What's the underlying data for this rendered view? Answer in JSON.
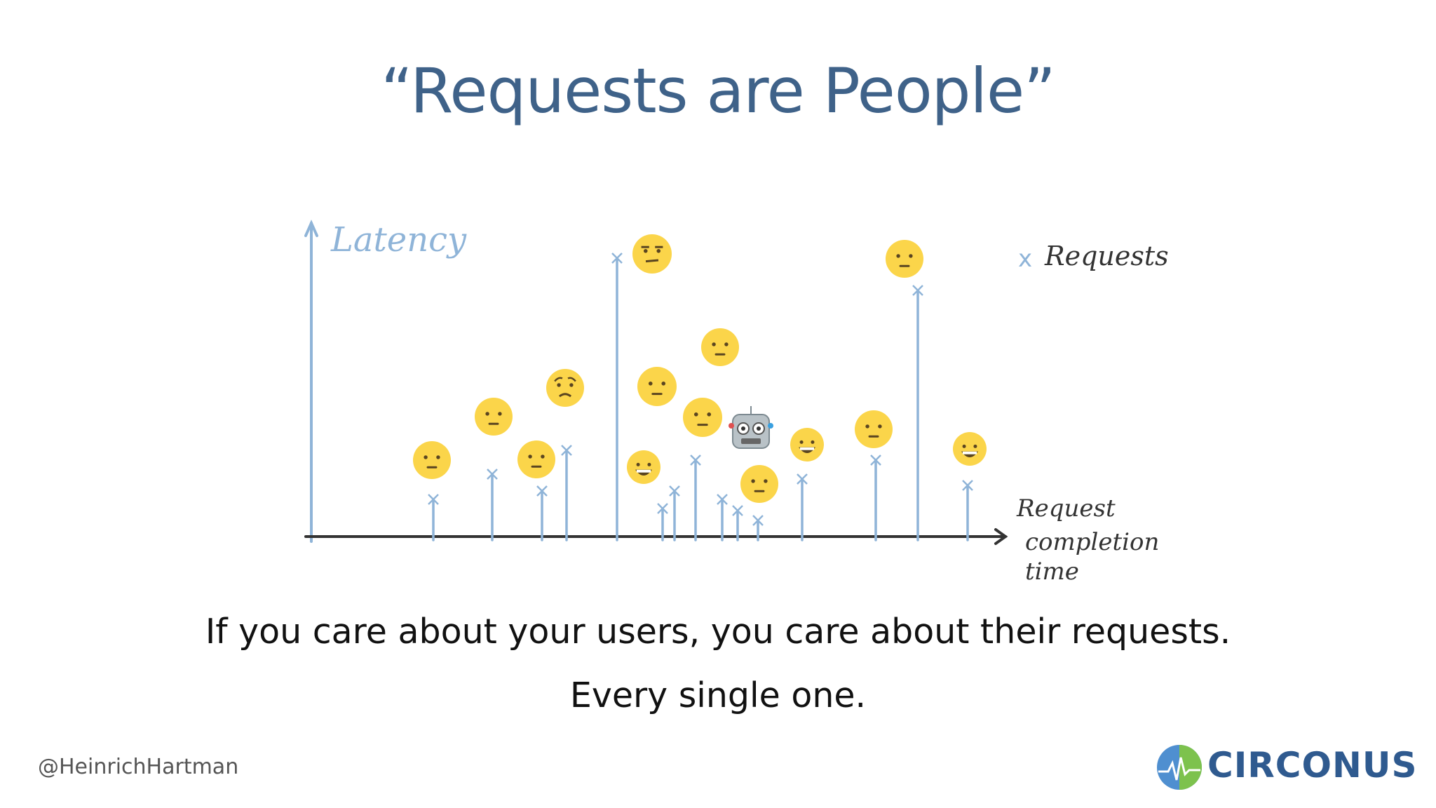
{
  "slide": {
    "title": "“Requests are People”",
    "caption_line1": "If you care about your users, you care about their requests.",
    "caption_line2": "Every single one.",
    "handle": "@HeinrichHartman",
    "logo_text": "CIRCONUS"
  },
  "diagram": {
    "y_axis_label": "Latency",
    "x_axis_label_lines": [
      "Request",
      "completion",
      "time"
    ],
    "legend_label": "Requests",
    "legend_marker": "x",
    "colors": {
      "requests": "#8fb4d8",
      "axis": "#333333",
      "emoji": "#fbd54a",
      "title": "#3f6289"
    },
    "requests": [
      {
        "emoji": "neutral-face"
      },
      {
        "emoji": "neutral-face"
      },
      {
        "emoji": "neutral-face"
      },
      {
        "emoji": "worried-face"
      },
      {
        "emoji": "unamused-face"
      },
      {
        "emoji": "grinning-face"
      },
      {
        "emoji": "neutral-face"
      },
      {
        "emoji": "neutral-face"
      },
      {
        "emoji": "neutral-face"
      },
      {
        "emoji": "robot-face"
      },
      {
        "emoji": "neutral-face"
      },
      {
        "emoji": "grinning-face"
      },
      {
        "emoji": "neutral-face"
      },
      {
        "emoji": "neutral-face"
      },
      {
        "emoji": "grinning-face"
      }
    ]
  }
}
